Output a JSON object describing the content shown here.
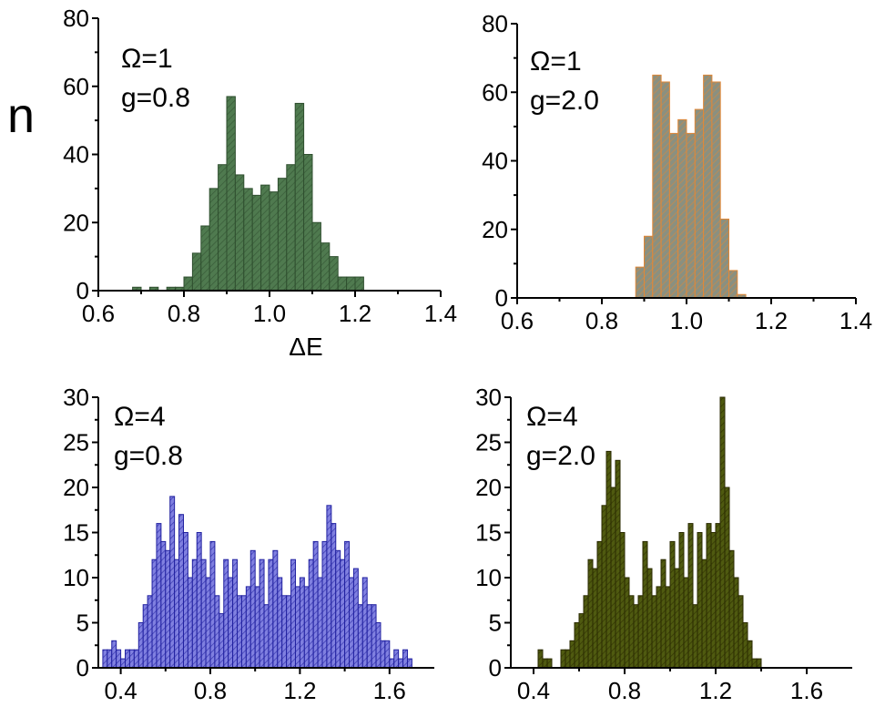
{
  "y_axis_label": "n",
  "chart_data": [
    {
      "id": "p1",
      "type": "bar",
      "annotation": [
        "Ω=1",
        "g=0.8"
      ],
      "xlabel": "ΔE",
      "ylabel": "n",
      "xlim": [
        0.6,
        1.4
      ],
      "ylim": [
        0,
        80
      ],
      "xticks": [
        "0.6",
        "0.8",
        "1.0",
        "1.2",
        "1.4"
      ],
      "yticks": [
        "0",
        "20",
        "40",
        "60",
        "80"
      ],
      "bin_width": 0.02,
      "fill": "#4f7a4f",
      "stroke": "#2f4f2f",
      "x": [
        0.69,
        0.71,
        0.73,
        0.75,
        0.77,
        0.79,
        0.81,
        0.83,
        0.85,
        0.87,
        0.89,
        0.91,
        0.93,
        0.95,
        0.97,
        0.99,
        1.01,
        1.03,
        1.05,
        1.07,
        1.09,
        1.11,
        1.13,
        1.15,
        1.17,
        1.19,
        1.21
      ],
      "values": [
        1,
        0,
        1,
        0,
        1,
        1,
        4,
        11,
        19,
        30,
        37,
        57,
        34,
        30,
        28,
        31,
        29,
        33,
        37,
        55,
        40,
        20,
        14,
        10,
        4,
        4,
        4
      ]
    },
    {
      "id": "p2",
      "type": "bar",
      "annotation": [
        "Ω=1",
        "g=2.0"
      ],
      "xlabel": "",
      "ylabel": "",
      "xlim": [
        0.6,
        1.4
      ],
      "ylim": [
        0,
        80
      ],
      "xticks": [
        "0.6",
        "0.8",
        "1.0",
        "1.2",
        "1.4"
      ],
      "yticks": [
        "0",
        "20",
        "40",
        "60",
        "80"
      ],
      "bin_width": 0.02,
      "fill": "#8a9080",
      "stroke": "#e08838",
      "x": [
        0.89,
        0.91,
        0.93,
        0.95,
        0.97,
        0.99,
        1.01,
        1.03,
        1.05,
        1.07,
        1.09,
        1.11,
        1.13
      ],
      "values": [
        9,
        18,
        65,
        63,
        48,
        52,
        48,
        55,
        65,
        63,
        23,
        8,
        1
      ]
    },
    {
      "id": "p3",
      "type": "bar",
      "annotation": [
        "Ω=4",
        "g=0.8"
      ],
      "xlabel": "",
      "ylabel": "",
      "xlim": [
        0.3,
        1.8
      ],
      "ylim": [
        0,
        30
      ],
      "xticks": [
        "0.4",
        "0.8",
        "1.2",
        "1.6"
      ],
      "yticks": [
        "0",
        "5",
        "10",
        "15",
        "20",
        "25",
        "30"
      ],
      "bin_width": 0.02,
      "fill": "#8080e0",
      "stroke": "#2020a0",
      "x": [
        0.33,
        0.35,
        0.37,
        0.39,
        0.41,
        0.43,
        0.45,
        0.47,
        0.49,
        0.51,
        0.53,
        0.55,
        0.57,
        0.59,
        0.61,
        0.63,
        0.65,
        0.67,
        0.69,
        0.71,
        0.73,
        0.75,
        0.77,
        0.79,
        0.81,
        0.83,
        0.85,
        0.87,
        0.89,
        0.91,
        0.93,
        0.95,
        0.97,
        0.99,
        1.01,
        1.03,
        1.05,
        1.07,
        1.09,
        1.11,
        1.13,
        1.15,
        1.17,
        1.19,
        1.21,
        1.23,
        1.25,
        1.27,
        1.29,
        1.31,
        1.33,
        1.35,
        1.37,
        1.39,
        1.41,
        1.43,
        1.45,
        1.47,
        1.49,
        1.51,
        1.53,
        1.55,
        1.57,
        1.59,
        1.61,
        1.63,
        1.65,
        1.67,
        1.69
      ],
      "values": [
        2,
        2,
        3,
        2,
        1,
        2,
        2,
        2,
        5,
        7,
        8,
        12,
        16,
        14,
        13,
        19,
        12,
        17,
        15,
        10,
        12,
        15,
        12,
        10,
        14,
        8,
        6,
        12,
        10,
        12,
        8,
        8,
        9,
        13,
        9,
        12,
        7,
        12,
        13,
        10,
        8,
        8,
        12,
        9,
        10,
        9,
        12,
        14,
        10,
        14,
        18,
        16,
        13,
        12,
        14,
        10,
        11,
        7,
        10,
        7,
        7,
        5,
        3,
        3,
        1,
        2,
        1,
        2,
        1
      ]
    },
    {
      "id": "p4",
      "type": "bar",
      "annotation": [
        "Ω=4",
        "g=2.0"
      ],
      "xlabel": "",
      "ylabel": "",
      "xlim": [
        0.3,
        1.8
      ],
      "ylim": [
        0,
        30
      ],
      "xticks": [
        "0.4",
        "0.8",
        "1.2",
        "1.6"
      ],
      "yticks": [
        "0",
        "5",
        "10",
        "15",
        "20",
        "25",
        "30"
      ],
      "bin_width": 0.02,
      "fill": "#4f5a10",
      "stroke": "#2a2a00",
      "x": [
        0.43,
        0.45,
        0.47,
        0.49,
        0.51,
        0.53,
        0.55,
        0.57,
        0.59,
        0.61,
        0.63,
        0.65,
        0.67,
        0.69,
        0.71,
        0.73,
        0.75,
        0.77,
        0.79,
        0.81,
        0.83,
        0.85,
        0.87,
        0.89,
        0.91,
        0.93,
        0.95,
        0.97,
        0.99,
        1.01,
        1.03,
        1.05,
        1.07,
        1.09,
        1.11,
        1.13,
        1.15,
        1.17,
        1.19,
        1.21,
        1.23,
        1.25,
        1.27,
        1.29,
        1.31,
        1.33,
        1.35,
        1.37,
        1.39
      ],
      "values": [
        2,
        1,
        1,
        0,
        0,
        2,
        2,
        3,
        5,
        6,
        8,
        12,
        11,
        14,
        18,
        24,
        20,
        23,
        15,
        10,
        8,
        7,
        8,
        14,
        11,
        8,
        9,
        12,
        9,
        14,
        11,
        15,
        10,
        16,
        7,
        15,
        12,
        16,
        15,
        16,
        30,
        20,
        13,
        10,
        8,
        5,
        3,
        1,
        1
      ]
    }
  ]
}
